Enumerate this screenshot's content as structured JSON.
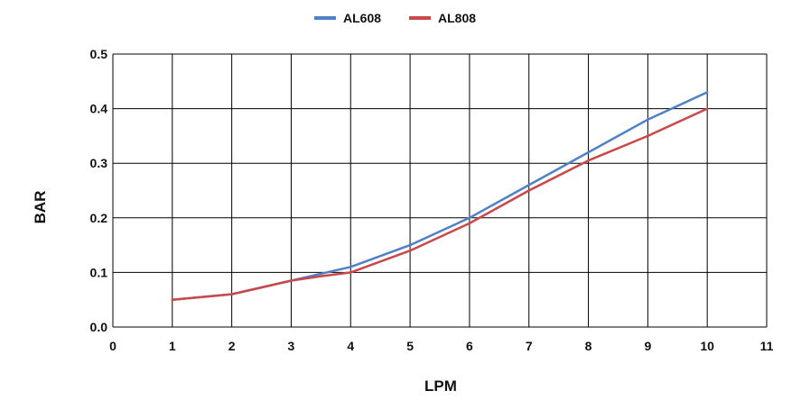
{
  "chart_data": {
    "type": "line",
    "title": "",
    "xlabel": "LPM",
    "ylabel": "BAR",
    "xlim": [
      0,
      11
    ],
    "ylim": [
      0,
      0.5
    ],
    "x_ticks": [
      "0",
      "1",
      "2",
      "3",
      "4",
      "5",
      "6",
      "7",
      "8",
      "9",
      "10",
      "11"
    ],
    "y_ticks": [
      "0.0",
      "0.1",
      "0.2",
      "0.3",
      "0.4",
      "0.5"
    ],
    "grid": true,
    "legend_position": "top-center",
    "series": [
      {
        "name": "AL608",
        "color": "#4f81c7",
        "x": [
          1,
          2,
          3,
          4,
          5,
          6,
          7,
          8,
          9,
          10
        ],
        "y": [
          0.05,
          0.06,
          0.085,
          0.11,
          0.15,
          0.2,
          0.26,
          0.32,
          0.38,
          0.43
        ]
      },
      {
        "name": "AL808",
        "color": "#c9484a",
        "x": [
          1,
          2,
          3,
          3.5,
          4,
          5,
          6,
          7,
          8,
          9,
          10
        ],
        "y": [
          0.05,
          0.06,
          0.085,
          0.093,
          0.1,
          0.14,
          0.19,
          0.25,
          0.305,
          0.35,
          0.4
        ]
      }
    ]
  }
}
